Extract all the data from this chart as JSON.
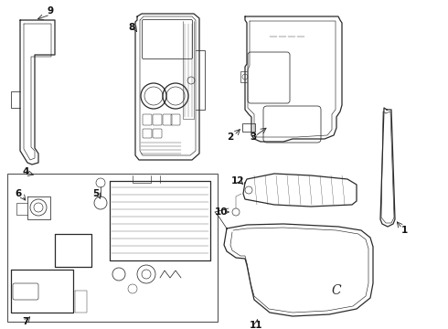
{
  "background_color": "#ffffff",
  "line_color": "#2a2a2a",
  "label_color": "#111111",
  "figsize": [
    4.9,
    3.6
  ],
  "dpi": 100,
  "lw_main": 0.9,
  "lw_detail": 0.55,
  "lw_inner": 0.45
}
